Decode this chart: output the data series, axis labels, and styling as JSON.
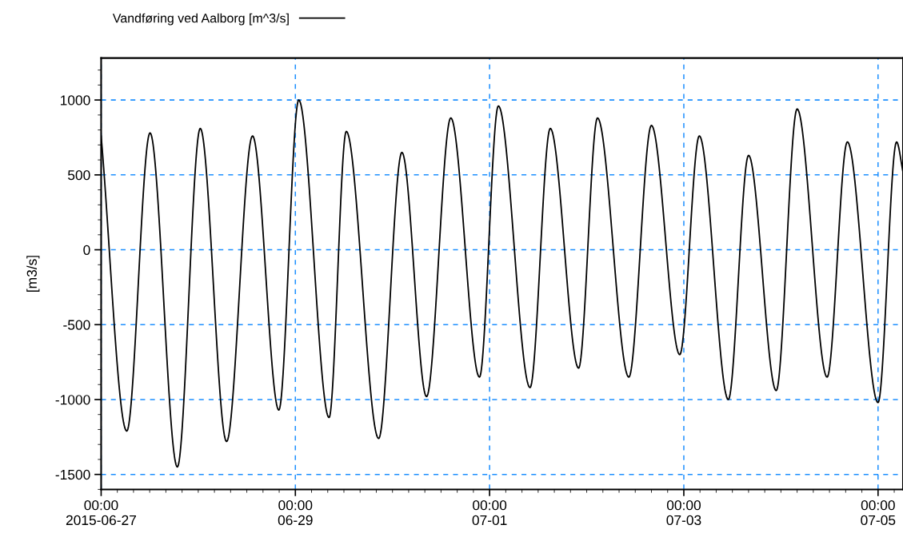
{
  "chart_data": {
    "type": "line",
    "ylabel": "[m3/s]",
    "legend": "top",
    "grid": true,
    "xlim": [
      "2015-06-27T00:00",
      "2015-07-05T06:10"
    ],
    "ylim": [
      -1600,
      1280
    ],
    "xticks": [
      {
        "value": "2015-06-27",
        "label": "00:00\n2015-06-27"
      },
      {
        "value": "2015-06-29",
        "label": "00:00\n06-29"
      },
      {
        "value": "2015-07-01",
        "label": "00:00\n07-01"
      },
      {
        "value": "2015-07-03",
        "label": "00:00\n07-03"
      },
      {
        "value": "2015-07-05",
        "label": "00:00\n07-05"
      }
    ],
    "yticks": [
      -1500,
      -1000,
      -500,
      0,
      500,
      1000
    ],
    "x": [
      "2015-06-27T00:00",
      "2015-06-27T06:20",
      "2015-06-27T12:05",
      "2015-06-27T18:50",
      "2015-06-28T00:30",
      "2015-06-28T07:00",
      "2015-06-28T13:25",
      "2015-06-28T19:55",
      "2015-06-29T00:50",
      "2015-06-29T08:20",
      "2015-06-29T12:35",
      "2015-06-29T20:35",
      "2015-06-30T02:20",
      "2015-06-30T08:25",
      "2015-06-30T14:25",
      "2015-06-30T21:30",
      "2015-07-01T02:10",
      "2015-07-01T10:00",
      "2015-07-01T15:00",
      "2015-07-01T22:00",
      "2015-07-02T02:40",
      "2015-07-02T10:25",
      "2015-07-02T16:00",
      "2015-07-02T23:00",
      "2015-07-03T03:50",
      "2015-07-03T11:00",
      "2015-07-03T16:00",
      "2015-07-03T22:50",
      "2015-07-04T04:00",
      "2015-07-04T11:25",
      "2015-07-04T16:25",
      "2015-07-05T00:00",
      "2015-07-05T04:35",
      "2015-07-05T06:10"
    ],
    "series": [
      {
        "name": "Vandføring ved Aalborg [m^3/s]",
        "color": "#000000",
        "values": [
          760,
          -1210,
          780,
          -1450,
          810,
          -1280,
          760,
          -1070,
          1000,
          -1120,
          790,
          -1260,
          650,
          -980,
          880,
          -850,
          960,
          -920,
          810,
          -790,
          880,
          -850,
          830,
          -700,
          760,
          -1000,
          630,
          -940,
          940,
          -850,
          720,
          -1020,
          720,
          520
        ]
      }
    ]
  }
}
